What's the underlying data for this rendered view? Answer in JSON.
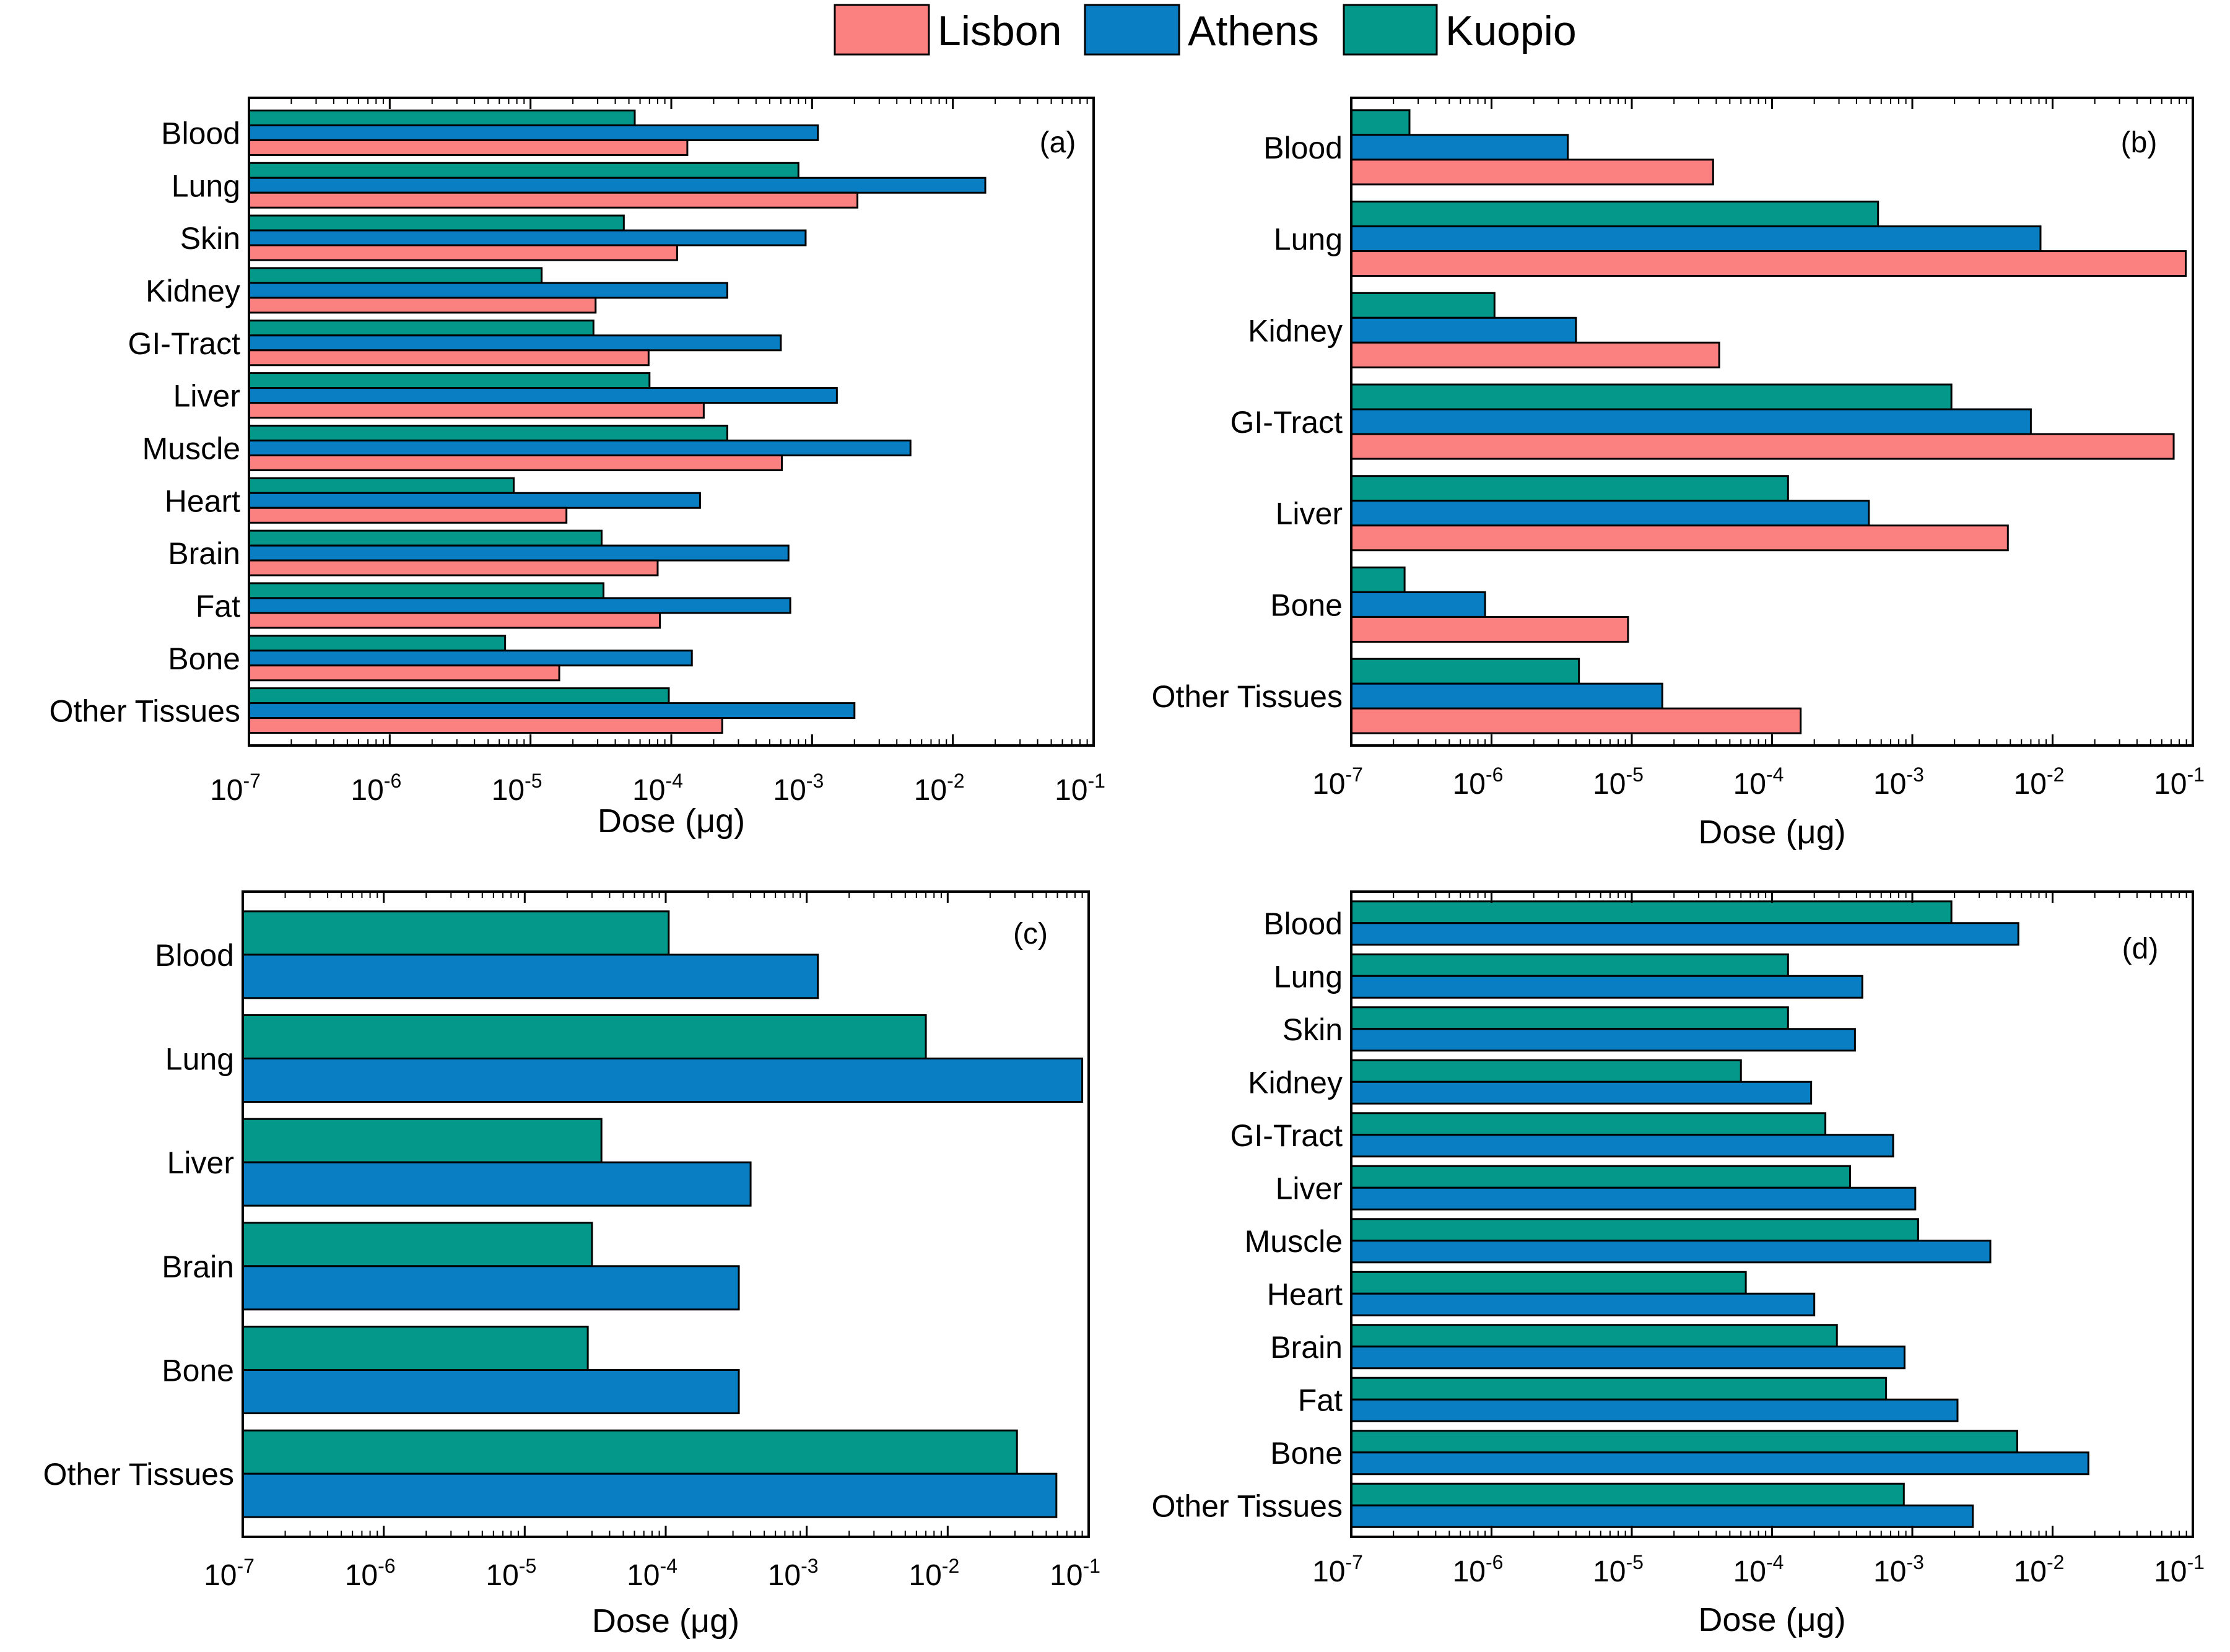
{
  "colors": {
    "Lisbon": "#fb8080",
    "Athens": "#0a7ec3",
    "Kuopio": "#04988a"
  },
  "legend": [
    "Lisbon",
    "Athens",
    "Kuopio"
  ],
  "chart_data": [
    {
      "type": "bar",
      "orientation": "horizontal",
      "x_scale": "log",
      "panel_label": "(a)",
      "xlabel": "Dose (μg)",
      "xlim": [
        1e-07,
        0.1
      ],
      "tick_exponents": [
        "-7",
        "-6",
        "-5",
        "-4",
        "-3",
        "-2",
        "-1"
      ],
      "categories": [
        "Blood",
        "Lung",
        "Skin",
        "Kidney",
        "GI-Tract",
        "Liver",
        "Muscle",
        "Heart",
        "Brain",
        "Fat",
        "Bone",
        "Other Tissues"
      ],
      "series": [
        {
          "name": "Kuopio",
          "values": [
            5.5e-05,
            0.0008,
            4.6e-05,
            1.2e-05,
            2.8e-05,
            7e-05,
            0.00025,
            7.6e-06,
            3.2e-05,
            3.3e-05,
            6.6e-06,
            9.6e-05
          ]
        },
        {
          "name": "Athens",
          "values": [
            0.0011,
            0.017,
            0.0009,
            0.00025,
            0.0006,
            0.0015,
            0.005,
            0.00016,
            0.00068,
            0.0007,
            0.00014,
            0.002
          ]
        },
        {
          "name": "Lisbon",
          "values": [
            0.00013,
            0.0021,
            0.00011,
            2.9e-05,
            6.9e-05,
            0.00017,
            0.00061,
            1.8e-05,
            8e-05,
            8.3e-05,
            1.6e-05,
            0.00023
          ]
        }
      ]
    },
    {
      "type": "bar",
      "orientation": "horizontal",
      "x_scale": "log",
      "panel_label": "(b)",
      "xlabel": "Dose (μg)",
      "xlim": [
        1e-07,
        0.1
      ],
      "tick_exponents": [
        "-7",
        "-6",
        "-5",
        "-4",
        "-3",
        "-2",
        "-1"
      ],
      "categories": [
        "Blood",
        "Lung",
        "Kidney",
        "GI-Tract",
        "Liver",
        "Bone",
        "Other Tissues"
      ],
      "series": [
        {
          "name": "Kuopio",
          "values": [
            2.6e-07,
            0.00057,
            1.05e-06,
            0.0019,
            0.00013,
            2.4e-07,
            4.2e-06
          ]
        },
        {
          "name": "Athens",
          "values": [
            3.5e-06,
            0.0082,
            4e-06,
            0.007,
            0.00049,
            9e-07,
            1.65e-05
          ]
        },
        {
          "name": "Lisbon",
          "values": [
            3.8e-05,
            0.089,
            4.2e-05,
            0.073,
            0.0048,
            9.4e-06,
            0.00016
          ]
        }
      ]
    },
    {
      "type": "bar",
      "orientation": "horizontal",
      "x_scale": "log",
      "panel_label": "(c)",
      "xlabel": "Dose (μg)",
      "xlim": [
        1e-07,
        0.1
      ],
      "tick_exponents": [
        "-7",
        "-6",
        "-5",
        "-4",
        "-3",
        "-2",
        "-1"
      ],
      "categories": [
        "Blood",
        "Lung",
        "Liver",
        "Brain",
        "Bone",
        "Other Tissues"
      ],
      "series": [
        {
          "name": "Kuopio",
          "values": [
            0.000105,
            0.007,
            3.5e-05,
            3e-05,
            2.8e-05,
            0.031
          ]
        },
        {
          "name": "Athens",
          "values": [
            0.0012,
            0.09,
            0.0004,
            0.00033,
            0.00033,
            0.059
          ]
        }
      ]
    },
    {
      "type": "bar",
      "orientation": "horizontal",
      "x_scale": "log",
      "panel_label": "(d)",
      "xlabel": "Dose (μg)",
      "xlim": [
        1e-07,
        0.1
      ],
      "tick_exponents": [
        "-7",
        "-6",
        "-5",
        "-4",
        "-3",
        "-2",
        "-1"
      ],
      "categories": [
        "Blood",
        "Lung",
        "Skin",
        "Kidney",
        "GI-Tract",
        "Liver",
        "Muscle",
        "Heart",
        "Brain",
        "Fat",
        "Bone",
        "Other Tissues"
      ],
      "series": [
        {
          "name": "Kuopio",
          "values": [
            0.0019,
            0.00013,
            0.00013,
            6e-05,
            0.00024,
            0.00036,
            0.0011,
            6.5e-05,
            0.00029,
            0.00065,
            0.0056,
            0.00087
          ]
        },
        {
          "name": "Athens",
          "values": [
            0.0057,
            0.00044,
            0.00039,
            0.00019,
            0.00073,
            0.00105,
            0.0036,
            0.0002,
            0.00088,
            0.0021,
            0.018,
            0.0027
          ]
        }
      ]
    }
  ]
}
